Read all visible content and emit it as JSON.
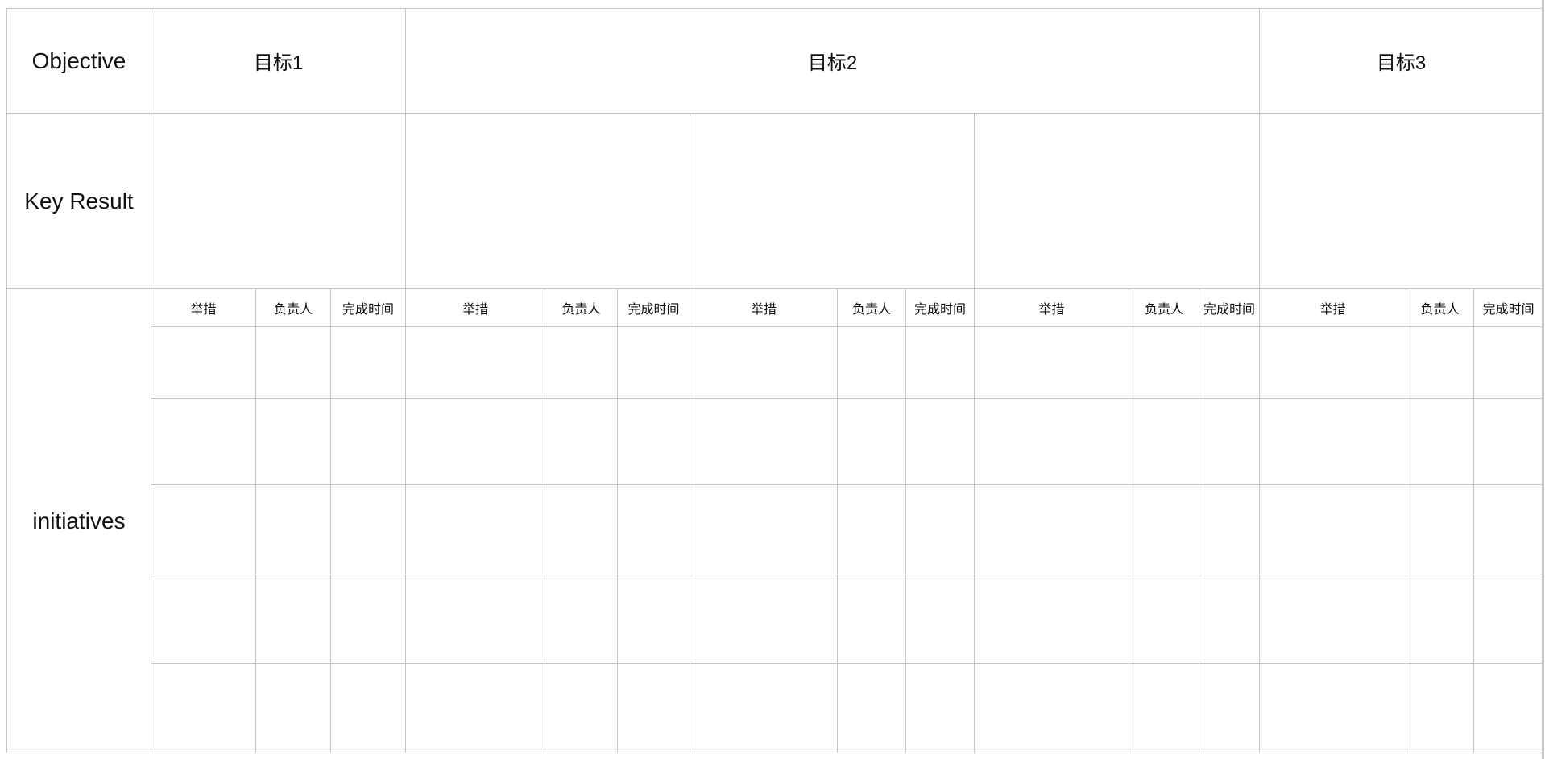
{
  "row_labels": {
    "objective": "Objective",
    "key_result": "Key Result",
    "initiatives": "initiatives"
  },
  "objectives": [
    {
      "label": "目标1"
    },
    {
      "label": "目标2"
    },
    {
      "label": "目标3"
    }
  ],
  "column_headers": {
    "measure": "举措",
    "owner": "负责人",
    "deadline": "完成时间"
  },
  "initiative_row_count": 5,
  "colors": {
    "border": "#c6c6c6",
    "background": "#ffffff",
    "text": "#111111"
  }
}
